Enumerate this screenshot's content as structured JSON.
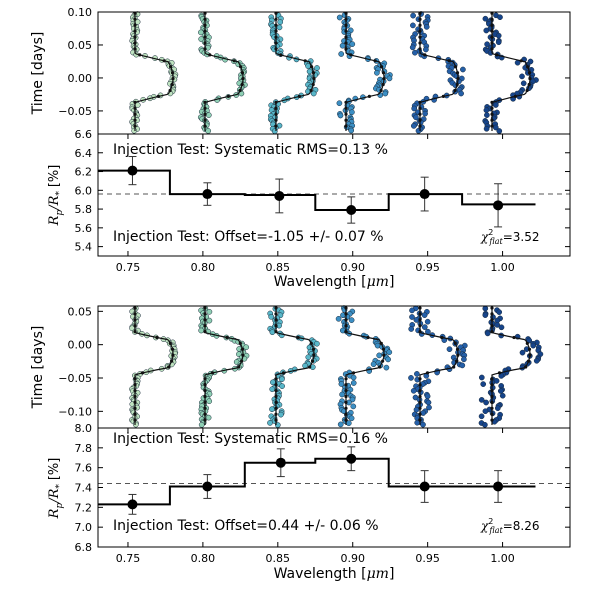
{
  "chart_data": [
    {
      "type": "scatter",
      "panel": "top-lightcurves",
      "ylabel": "Time [days]",
      "yticks": [
        "0.10",
        "0.05",
        "0.00",
        "−0.05"
      ],
      "ylim": [
        -0.085,
        0.1
      ],
      "series_colors": [
        "#bfe3c0",
        "#8fd0b4",
        "#58b6c8",
        "#3c8fc4",
        "#245fa8",
        "#16448a"
      ]
    },
    {
      "type": "line",
      "panel": "top-spectrum",
      "ylabel_main": "R",
      "ylabel_sub1": "p",
      "ylabel_mid": "/R",
      "ylabel_sub2": "*",
      "ylabel_unit": "[%]",
      "xlabel_main": "Wavelength [",
      "xlabel_mu": "μm",
      "xlabel_end": "]",
      "xlim": [
        0.73,
        1.045
      ],
      "ylim": [
        5.3,
        6.6
      ],
      "xticks": [
        "0.75",
        "0.80",
        "0.85",
        "0.90",
        "0.95",
        "1.00"
      ],
      "yticks": [
        "6.6",
        "6.4",
        "6.2",
        "6.0",
        "5.8",
        "5.6",
        "5.4"
      ],
      "bin_edges": [
        0.73,
        0.778,
        0.828,
        0.875,
        0.924,
        0.973,
        1.022
      ],
      "step_values": [
        6.21,
        5.96,
        5.95,
        5.79,
        5.96,
        5.85
      ],
      "x": [
        0.753,
        0.803,
        0.851,
        0.899,
        0.948,
        0.997
      ],
      "y": [
        6.21,
        5.96,
        5.94,
        5.79,
        5.96,
        5.84
      ],
      "yerr": [
        0.15,
        0.12,
        0.18,
        0.14,
        0.18,
        0.23
      ],
      "flat_level": 5.96,
      "annotation_top": "Injection Test: Systematic RMS=0.13 %",
      "annotation_bottom": "Injection Test: Offset=-1.05 +/- 0.07 %",
      "chi_label": "χ",
      "chi_sup": "2",
      "chi_sub": "flat",
      "chi_value": "=3.52"
    },
    {
      "type": "scatter",
      "panel": "bottom-lightcurves",
      "ylabel": "Time [days]",
      "yticks": [
        "0.05",
        "0.00",
        "−0.05",
        "−0.10"
      ],
      "ylim": [
        -0.125,
        0.058
      ],
      "series_colors": [
        "#bfe3c0",
        "#8fd0b4",
        "#58b6c8",
        "#3c8fc4",
        "#245fa8",
        "#16448a"
      ]
    },
    {
      "type": "line",
      "panel": "bottom-spectrum",
      "ylabel_main": "R",
      "ylabel_sub1": "p",
      "ylabel_mid": "/R",
      "ylabel_sub2": "*",
      "ylabel_unit": "[%]",
      "xlabel_main": "Wavelength [",
      "xlabel_mu": "μm",
      "xlabel_end": "]",
      "xlim": [
        0.73,
        1.045
      ],
      "ylim": [
        6.8,
        8.0
      ],
      "xticks": [
        "0.75",
        "0.80",
        "0.85",
        "0.90",
        "0.95",
        "1.00"
      ],
      "yticks": [
        "8.0",
        "7.8",
        "7.6",
        "7.4",
        "7.2",
        "7.0",
        "6.8"
      ],
      "bin_edges": [
        0.73,
        0.778,
        0.828,
        0.875,
        0.924,
        0.973,
        1.022
      ],
      "step_values": [
        7.23,
        7.41,
        7.65,
        7.69,
        7.41,
        7.41
      ],
      "x": [
        0.753,
        0.803,
        0.852,
        0.899,
        0.948,
        0.997
      ],
      "y": [
        7.23,
        7.41,
        7.65,
        7.69,
        7.41,
        7.41
      ],
      "yerr": [
        0.1,
        0.12,
        0.14,
        0.12,
        0.16,
        0.16
      ],
      "flat_level": 7.44,
      "annotation_top": "Injection Test: Systematic RMS=0.16 %",
      "annotation_bottom": "Injection Test: Offset=0.44 +/- 0.06 %",
      "chi_label": "χ",
      "chi_sup": "2",
      "chi_sub": "flat",
      "chi_value": "=8.26"
    }
  ]
}
